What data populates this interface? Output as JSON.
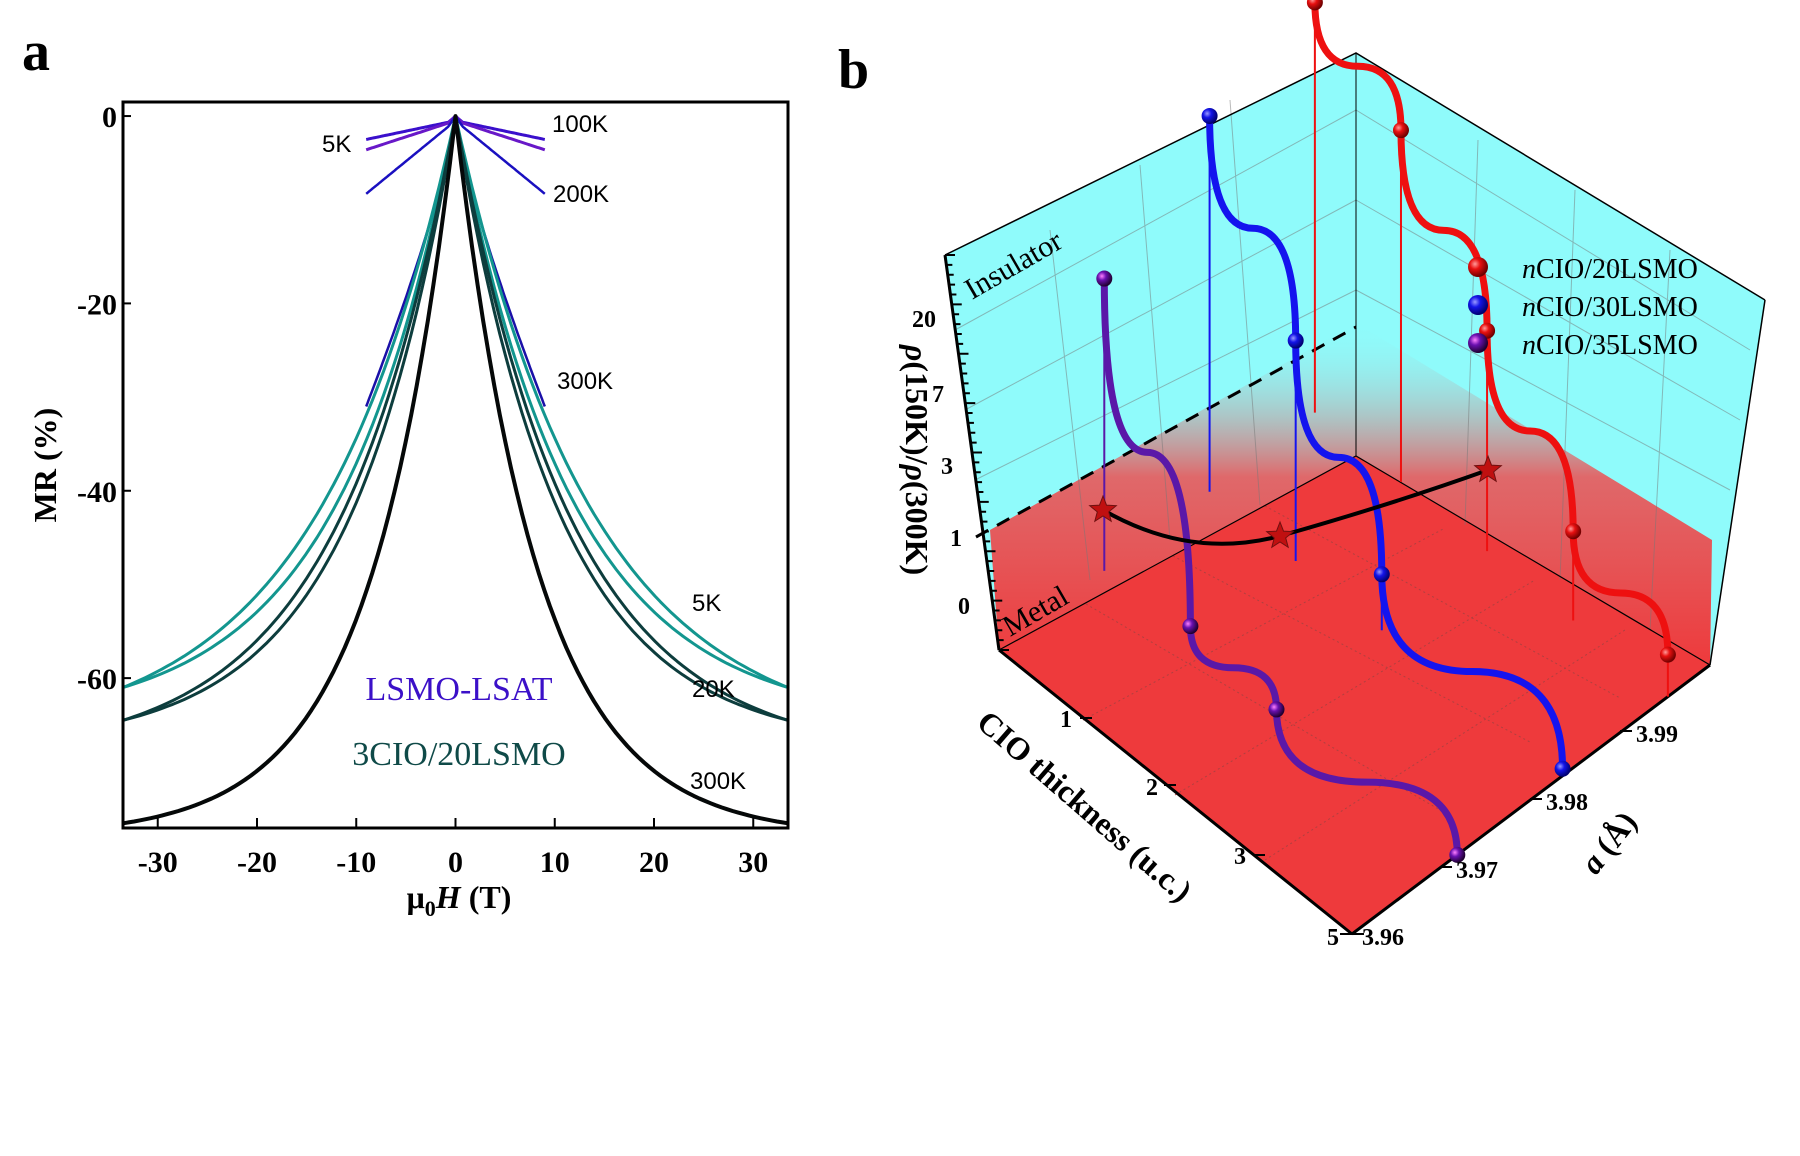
{
  "figure": {
    "panel_a_label": "a",
    "panel_b_label": "b"
  },
  "chart_data": [
    {
      "type": "line",
      "panel": "a",
      "title": "",
      "xlabel": "μ0H (T)",
      "xlabel_parts": {
        "mu": "μ",
        "sub": "0",
        "var": "H",
        "unit": " (T)"
      },
      "ylabel": "MR (%)",
      "xlim": [
        -33.5,
        33.5
      ],
      "ylim": [
        -76,
        1.5
      ],
      "xticks": [
        -30,
        -20,
        -10,
        0,
        10,
        20,
        30
      ],
      "xtick_labels": [
        "-30",
        "-20",
        "-10",
        "0",
        "10",
        "20",
        "30"
      ],
      "yticks": [
        0,
        -20,
        -40,
        -60
      ],
      "ytick_labels": [
        "0",
        "-20",
        "-40",
        "-60"
      ],
      "grid": false,
      "annotations": [
        {
          "text": "LSMO-LSAT",
          "color": "#3b10c8"
        },
        {
          "text": "3CIO/20LSMO",
          "color": "#0f4a48"
        }
      ],
      "temperature_labels": [
        {
          "text": "5K",
          "group": "LSMO-LSAT",
          "side": "left",
          "mr": -3.6
        },
        {
          "text": "100K",
          "group": "LSMO-LSAT",
          "side": "right",
          "mr": -2.5
        },
        {
          "text": "200K",
          "group": "LSMO-LSAT",
          "side": "right",
          "mr": -9.3
        },
        {
          "text": "300K",
          "group": "LSMO-LSAT",
          "side": "right",
          "mr": -29.2
        },
        {
          "text": "5K",
          "group": "3CIO/20LSMO",
          "side": "right",
          "mr": -51.5
        },
        {
          "text": "20K",
          "group": "3CIO/20LSMO",
          "side": "right",
          "mr": -60.4
        },
        {
          "text": "300K",
          "group": "3CIO/20LSMO",
          "side": "right",
          "mr": -70.0
        }
      ],
      "series": [
        {
          "name": "LSMO-LSAT 5K",
          "group": "LSMO-LSAT",
          "color": "#3a0fcc",
          "width": 3,
          "hmax": 9,
          "mr_at_hmax": -2.5
        },
        {
          "name": "LSMO-LSAT 100K",
          "group": "LSMO-LSAT",
          "color": "#6818c8",
          "width": 3,
          "hmax": 9,
          "mr_at_hmax": -3.6
        },
        {
          "name": "LSMO-LSAT 200K",
          "group": "LSMO-LSAT",
          "color": "#1a10c0",
          "width": 2.5,
          "hmax": 9,
          "mr_at_hmax": -8.3
        },
        {
          "name": "LSMO-LSAT 300K",
          "group": "LSMO-LSAT",
          "color": "#1a10a8",
          "width": 2.5,
          "hmax": 9,
          "mr_at_hmax": -31.0,
          "shape": "sharp"
        },
        {
          "name": "3CIO/20LSMO 5K (a)",
          "group": "3CIO/20LSMO",
          "color": "#13968f",
          "width": 3,
          "hmax": 33.5,
          "mr_at_hmax": -61.0,
          "k": 0.072
        },
        {
          "name": "3CIO/20LSMO 5K (b)",
          "group": "3CIO/20LSMO",
          "color": "#13968f",
          "width": 3,
          "hmax": 33.5,
          "mr_at_hmax": -61.0,
          "k": 0.085
        },
        {
          "name": "3CIO/20LSMO 20K (a)",
          "group": "3CIO/20LSMO",
          "color": "#0d3d3d",
          "width": 3,
          "hmax": 33.5,
          "mr_at_hmax": -64.5,
          "k": 0.085
        },
        {
          "name": "3CIO/20LSMO 20K (b)",
          "group": "3CIO/20LSMO",
          "color": "#0d3d3d",
          "width": 3,
          "hmax": 33.5,
          "mr_at_hmax": -64.5,
          "k": 0.095
        },
        {
          "name": "3CIO/20LSMO 300K",
          "group": "3CIO/20LSMO",
          "color": "#050808",
          "width": 4,
          "hmax": 33.5,
          "mr_at_hmax": -75.5,
          "k": 0.12
        }
      ]
    },
    {
      "type": "scatter3d",
      "panel": "b",
      "xlabel": "CIO thickness (u.c.)",
      "ylabel": "a (Å)",
      "ylabel_parts": {
        "var": "a",
        "unit": " (Å)"
      },
      "zlabel": "ρ(150K)/ρ(300K)",
      "x_ticks": [
        "1",
        "2",
        "3",
        "5"
      ],
      "y_ticks": [
        "3.96",
        "3.97",
        "3.98",
        "3.99"
      ],
      "z_ticks": [
        "0",
        "1",
        "3",
        "7",
        "20"
      ],
      "region_labels": [
        "Insulator",
        "Metal"
      ],
      "colors": {
        "insulator": "#8ffbfb",
        "metal": "#ee3a3c",
        "boundary": "#000000"
      },
      "legend": {
        "position": "top-right",
        "entries": [
          {
            "prefix": "n",
            "label": "CIO/20LSMO",
            "color": "#e81010"
          },
          {
            "prefix": "n",
            "label": "CIO/30LSMO",
            "color": "#1414e8"
          },
          {
            "prefix": "n",
            "label": "CIO/35LSMO",
            "color": "#5a10a0"
          }
        ]
      },
      "series": [
        {
          "name": "nCIO/20LSMO",
          "color": "#ee1010",
          "points": [
            {
              "n": 0,
              "a": 3.99,
              "z": 40
            },
            {
              "n": 1,
              "a": 3.99,
              "z": 18
            },
            {
              "n": 2,
              "a": 3.99,
              "z": 3
            },
            {
              "n": 3,
              "a": 3.99,
              "z": 0.5
            },
            {
              "n": 5,
              "a": 3.99,
              "z": -0.4
            }
          ]
        },
        {
          "name": "nCIO/30LSMO",
          "color": "#1414ee",
          "points": [
            {
              "n": 0,
              "a": 3.98,
              "z": 25
            },
            {
              "n": 1,
              "a": 3.98,
              "z": 3
            },
            {
              "n": 2,
              "a": 3.98,
              "z": -0.2
            },
            {
              "n": 5,
              "a": 3.98,
              "z": -0.9
            }
          ]
        },
        {
          "name": "nCIO/35LSMO",
          "color": "#5a18a8",
          "points": [
            {
              "n": 0,
              "a": 3.97,
              "z": 8
            },
            {
              "n": 1,
              "a": 3.97,
              "z": -0.8
            },
            {
              "n": 2,
              "a": 3.97,
              "z": -1
            },
            {
              "n": 5,
              "a": 3.97,
              "z": -1
            }
          ]
        }
      ],
      "transition_curve": {
        "name": "metal-insulator boundary",
        "color": "#000000",
        "marker": "red-star"
      }
    }
  ]
}
